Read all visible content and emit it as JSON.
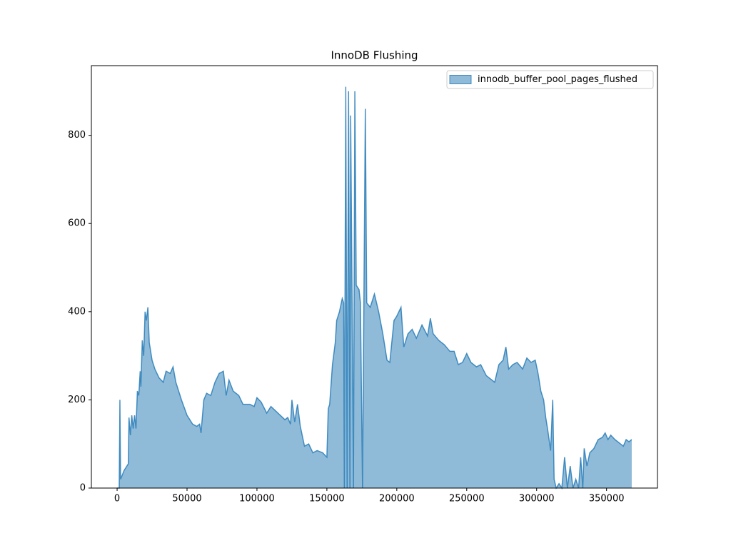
{
  "chart_data": {
    "type": "area",
    "title": "InnoDB Flushing",
    "legend": "upper right",
    "xlim": [
      -18400,
      386400
    ],
    "ylim": [
      0,
      958
    ],
    "xticks": [
      0,
      50000,
      100000,
      150000,
      200000,
      250000,
      300000,
      350000
    ],
    "yticks": [
      0,
      200,
      400,
      600,
      800
    ],
    "x": [
      0,
      1500,
      2000,
      2500,
      5000,
      8000,
      8500,
      9500,
      10500,
      11500,
      12500,
      13500,
      14500,
      15500,
      16500,
      17000,
      18000,
      19000,
      20000,
      21000,
      22000,
      23000,
      25000,
      27000,
      30000,
      33000,
      35000,
      38000,
      40000,
      42000,
      46000,
      50000,
      54000,
      57000,
      59000,
      60000,
      62000,
      64000,
      67000,
      70000,
      73000,
      76000,
      78000,
      80000,
      83000,
      87000,
      90000,
      95000,
      98000,
      100000,
      103000,
      107000,
      110000,
      115000,
      120000,
      122000,
      124000,
      125000,
      127000,
      129000,
      131000,
      134000,
      137000,
      140000,
      143000,
      147000,
      150000,
      151000,
      152000,
      154000,
      156000,
      157000,
      159000,
      161000,
      162000,
      162500,
      163500,
      164500,
      165500,
      166500,
      167000,
      168000,
      169000,
      170000,
      171000,
      173000,
      174000,
      175500,
      176500,
      177500,
      178500,
      181000,
      184000,
      187000,
      190000,
      193000,
      195000,
      198000,
      200000,
      203000,
      205000,
      208000,
      211000,
      214000,
      218000,
      222000,
      224000,
      226000,
      230000,
      234000,
      238000,
      241000,
      244000,
      247000,
      250000,
      253000,
      257000,
      260000,
      264000,
      268000,
      270000,
      273000,
      276000,
      278000,
      280000,
      283000,
      286000,
      290000,
      293000,
      296000,
      299000,
      301000,
      303000,
      305000,
      306500,
      308000,
      310000,
      311500,
      312500,
      314000,
      316000,
      318000,
      320000,
      322000,
      324000,
      326000,
      328000,
      330000,
      331500,
      333000,
      334000,
      336000,
      338000,
      341000,
      344000,
      347000,
      349000,
      351000,
      353000,
      356000,
      360000,
      362000,
      364000,
      366000,
      368000
    ],
    "series": [
      {
        "name": "innodb_buffer_pool_pages_flushed",
        "color": "#1f77b4",
        "values": [
          0,
          0,
          200,
          20,
          40,
          55,
          160,
          120,
          165,
          135,
          165,
          135,
          220,
          210,
          265,
          230,
          335,
          300,
          400,
          380,
          410,
          330,
          290,
          270,
          250,
          240,
          265,
          260,
          275,
          240,
          200,
          165,
          145,
          140,
          145,
          125,
          200,
          215,
          210,
          240,
          260,
          265,
          210,
          245,
          220,
          210,
          190,
          190,
          185,
          205,
          195,
          170,
          185,
          170,
          155,
          160,
          145,
          200,
          150,
          190,
          140,
          95,
          100,
          80,
          85,
          80,
          70,
          180,
          190,
          280,
          330,
          380,
          400,
          430,
          420,
          0,
          910,
          0,
          900,
          0,
          845,
          440,
          0,
          900,
          460,
          450,
          420,
          0,
          440,
          860,
          420,
          410,
          440,
          400,
          350,
          290,
          285,
          380,
          390,
          410,
          320,
          350,
          360,
          340,
          370,
          345,
          385,
          350,
          335,
          325,
          310,
          310,
          280,
          285,
          305,
          285,
          275,
          280,
          255,
          245,
          240,
          280,
          290,
          320,
          270,
          280,
          285,
          270,
          295,
          285,
          290,
          260,
          220,
          200,
          160,
          130,
          85,
          200,
          20,
          0,
          10,
          0,
          70,
          0,
          50,
          0,
          20,
          0,
          70,
          0,
          90,
          50,
          80,
          90,
          110,
          115,
          125,
          110,
          120,
          110,
          100,
          95,
          110,
          105,
          110
        ]
      }
    ]
  }
}
